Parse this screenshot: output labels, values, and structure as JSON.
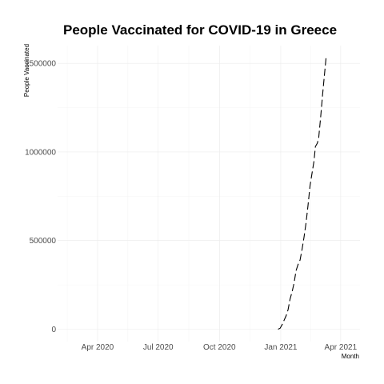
{
  "chart_data": {
    "type": "line",
    "title": "People Vaccinated for COVID-19 in Greece",
    "xlabel": "Month",
    "ylabel": "People Vaccinated",
    "x_type": "date",
    "xlim": [
      "2020-02-01",
      "2021-04-30"
    ],
    "ylim": [
      -70000,
      1600000
    ],
    "x_ticks": [
      {
        "date": "2020-04-01",
        "label": "Apr 2020"
      },
      {
        "date": "2020-07-01",
        "label": "Jul 2020"
      },
      {
        "date": "2020-10-01",
        "label": "Oct 2020"
      },
      {
        "date": "2021-01-01",
        "label": "Jan 2021"
      },
      {
        "date": "2021-04-01",
        "label": "Apr 2021"
      }
    ],
    "y_ticks": [
      {
        "value": 0,
        "label": "0"
      },
      {
        "value": 500000,
        "label": "500000"
      },
      {
        "value": 1000000,
        "label": "1000000"
      },
      {
        "value": 1500000,
        "label": "1500000"
      }
    ],
    "grid": true,
    "line_style": "dashed",
    "series": [
      {
        "color": "#000000",
        "points": [
          [
            "2020-12-28",
            0
          ],
          [
            "2020-12-31",
            5000
          ],
          [
            "2021-01-03",
            25000
          ],
          [
            "2021-01-06",
            50000
          ],
          [
            "2021-01-09",
            75000
          ],
          [
            "2021-01-12",
            110000
          ],
          [
            "2021-01-15",
            170000
          ],
          [
            "2021-01-18",
            210000
          ],
          [
            "2021-01-21",
            260000
          ],
          [
            "2021-01-24",
            330000
          ],
          [
            "2021-01-27",
            365000
          ],
          [
            "2021-01-30",
            390000
          ],
          [
            "2021-02-02",
            450000
          ],
          [
            "2021-02-05",
            520000
          ],
          [
            "2021-02-08",
            600000
          ],
          [
            "2021-02-11",
            700000
          ],
          [
            "2021-02-14",
            810000
          ],
          [
            "2021-02-17",
            880000
          ],
          [
            "2021-02-20",
            950000
          ],
          [
            "2021-02-22",
            1030000
          ],
          [
            "2021-02-25",
            1050000
          ],
          [
            "2021-02-27",
            1080000
          ],
          [
            "2021-03-02",
            1200000
          ],
          [
            "2021-03-05",
            1330000
          ],
          [
            "2021-03-08",
            1450000
          ],
          [
            "2021-03-10",
            1530000
          ]
        ]
      }
    ]
  }
}
